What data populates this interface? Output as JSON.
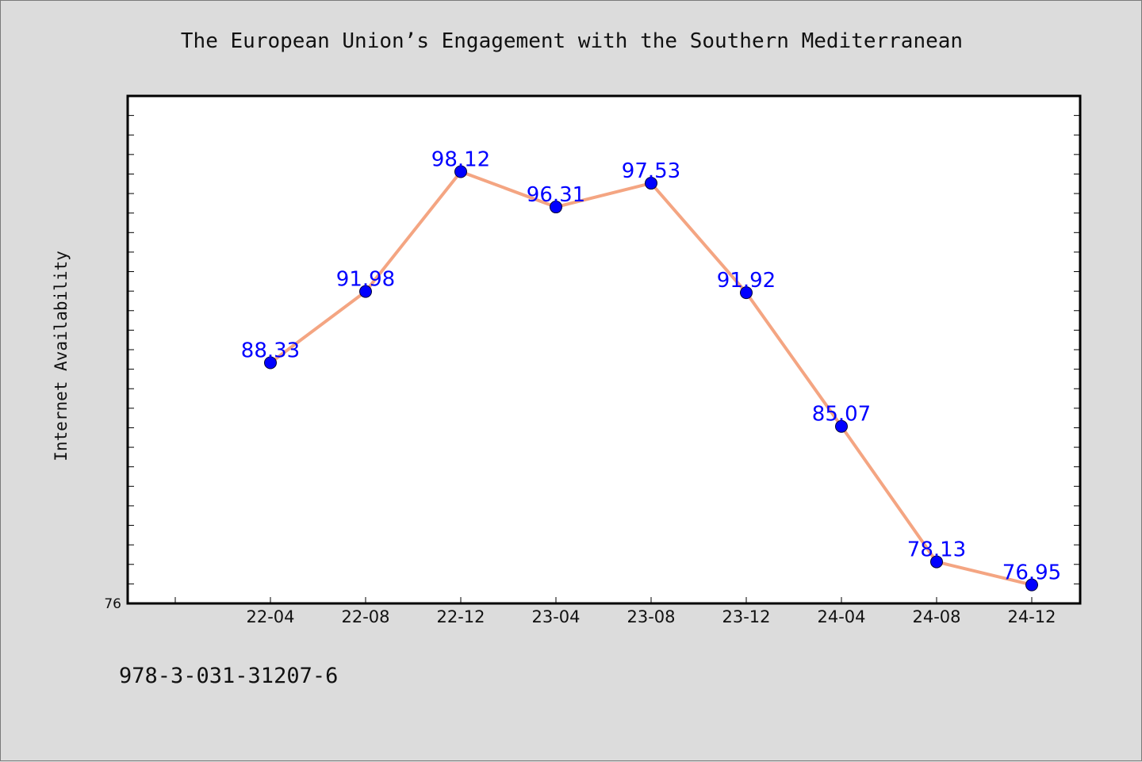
{
  "chart_data": {
    "type": "line",
    "title": "The European Union’s Engagement with the Southern Mediterranean",
    "ylabel": "Internet Availability",
    "xlabel": "",
    "categories": [
      "22-04",
      "22-08",
      "22-12",
      "23-04",
      "23-08",
      "23-12",
      "24-04",
      "24-08",
      "24-12"
    ],
    "series": [
      {
        "values": [
          88.33,
          91.98,
          98.12,
          96.31,
          97.53,
          91.92,
          85.07,
          78.13,
          76.95
        ]
      }
    ],
    "ylim": [
      76,
      102
    ],
    "y_tick_labels": [
      "76"
    ],
    "grid": false,
    "line_color": "#f4a582",
    "marker_color": "#0000ff",
    "label_color": "#0000ff"
  },
  "footer": {
    "text": "978-3-031-31207-6"
  }
}
